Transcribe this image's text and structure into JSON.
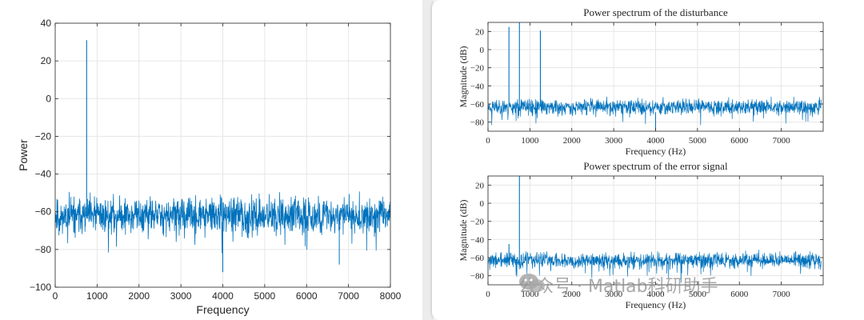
{
  "colors": {
    "line": "#0072BD",
    "grid": "#e6e6e6",
    "axis": "#262626"
  },
  "watermark": {
    "text": "公众号 · Matlab科研助手"
  },
  "chart_data": [
    {
      "id": "left",
      "type": "line",
      "title": "",
      "xlabel": "Frequency",
      "ylabel": "Power",
      "xlim": [
        0,
        8000
      ],
      "ylim": [
        -100,
        40
      ],
      "xticks": [
        0,
        1000,
        2000,
        3000,
        4000,
        5000,
        6000,
        7000,
        8000
      ],
      "yticks": [
        -100,
        -80,
        -60,
        -40,
        -20,
        0,
        20,
        40
      ],
      "xtick_labels": [
        "0",
        "1000",
        "2000",
        "3000",
        "4000",
        "5000",
        "6000",
        "7000",
        "8000"
      ],
      "ytick_labels": [
        "−100",
        "−80",
        "−60",
        "−40",
        "−20",
        "0",
        "20",
        "40"
      ],
      "grid": true,
      "series": [
        {
          "name": "power spectrum",
          "noise_floor_mean": -62,
          "noise_floor_spread": 10,
          "x_max": 8000,
          "dips": [
            {
              "x": 4000,
              "y": -92
            },
            {
              "x": 6780,
              "y": -88
            }
          ],
          "peaks": [
            {
              "x": 750,
              "y": 31
            }
          ]
        }
      ]
    },
    {
      "id": "top-right",
      "type": "line",
      "title": "Power spectrum of the disturbance",
      "xlabel": "Frequency (Hz)",
      "ylabel": "Magnitude (dB)",
      "xlim": [
        0,
        8000
      ],
      "ylim": [
        -90,
        30
      ],
      "xticks": [
        0,
        1000,
        2000,
        3000,
        4000,
        5000,
        6000,
        7000
      ],
      "yticks": [
        -80,
        -60,
        -40,
        -20,
        0,
        20
      ],
      "xtick_labels": [
        "0",
        "1000",
        "2000",
        "3000",
        "4000",
        "5000",
        "6000",
        "7000"
      ],
      "ytick_labels": [
        "−80",
        "−60",
        "−40",
        "−20",
        "0",
        "20"
      ],
      "grid": true,
      "series": [
        {
          "name": "disturbance",
          "noise_floor_mean": -63,
          "noise_floor_spread": 9,
          "x_max": 7950,
          "dips": [
            {
              "x": 4000,
              "y": -92
            }
          ],
          "peaks": [
            {
              "x": 500,
              "y": 25
            },
            {
              "x": 750,
              "y": 32
            },
            {
              "x": 1250,
              "y": 21
            }
          ]
        }
      ]
    },
    {
      "id": "bottom-right",
      "type": "line",
      "title": "Power spectrum of the error signal",
      "xlabel": "Frequency (Hz)",
      "ylabel": "Magnitude (dB)",
      "xlim": [
        0,
        8000
      ],
      "ylim": [
        -90,
        30
      ],
      "xticks": [
        0,
        1000,
        2000,
        3000,
        4000,
        5000,
        6000,
        7000
      ],
      "yticks": [
        -80,
        -60,
        -40,
        -20,
        0,
        20
      ],
      "xtick_labels": [
        "0",
        "1000",
        "2000",
        "3000",
        "4000",
        "5000",
        "6000",
        "7000"
      ],
      "ytick_labels": [
        "−80",
        "−60",
        "−40",
        "−20",
        "0",
        "20"
      ],
      "grid": true,
      "series": [
        {
          "name": "error signal",
          "noise_floor_mean": -63,
          "noise_floor_spread": 9,
          "x_max": 7950,
          "dips": [],
          "peaks": [
            {
              "x": 500,
              "y": -45
            },
            {
              "x": 750,
              "y": 32
            }
          ]
        }
      ]
    }
  ]
}
